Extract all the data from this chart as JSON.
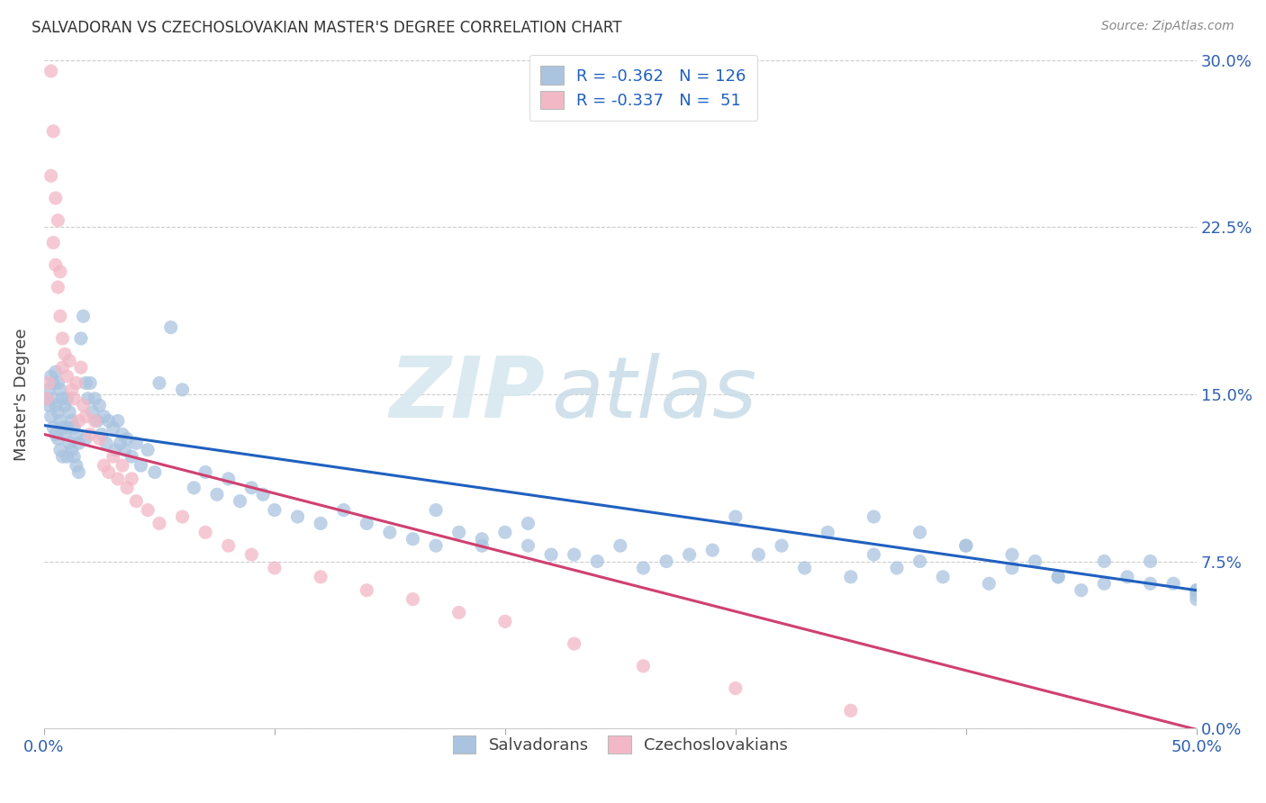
{
  "title": "SALVADORAN VS CZECHOSLOVAKIAN MASTER'S DEGREE CORRELATION CHART",
  "source": "Source: ZipAtlas.com",
  "ylabel": "Master's Degree",
  "ytick_labels": [
    "0.0%",
    "7.5%",
    "15.0%",
    "22.5%",
    "30.0%"
  ],
  "ytick_values": [
    0.0,
    0.075,
    0.15,
    0.225,
    0.3
  ],
  "xlim": [
    0.0,
    0.5
  ],
  "ylim": [
    0.0,
    0.3
  ],
  "blue_color": "#aac4e0",
  "pink_color": "#f2b8c6",
  "line_blue": "#2060c0",
  "line_pink": "#d04070",
  "watermark_zip": "ZIP",
  "watermark_atlas": "atlas",
  "salvadorans_label": "Salvadorans",
  "czechoslovakians_label": "Czechoslovakians",
  "blue_intercept": 0.136,
  "blue_slope": -0.148,
  "pink_intercept": 0.132,
  "pink_slope": -0.265,
  "blue_points_x": [
    0.001,
    0.002,
    0.002,
    0.003,
    0.003,
    0.004,
    0.004,
    0.004,
    0.005,
    0.005,
    0.005,
    0.006,
    0.006,
    0.006,
    0.007,
    0.007,
    0.007,
    0.008,
    0.008,
    0.008,
    0.009,
    0.009,
    0.01,
    0.01,
    0.01,
    0.011,
    0.011,
    0.012,
    0.012,
    0.013,
    0.013,
    0.014,
    0.014,
    0.015,
    0.015,
    0.016,
    0.017,
    0.018,
    0.018,
    0.019,
    0.02,
    0.021,
    0.022,
    0.023,
    0.024,
    0.025,
    0.026,
    0.027,
    0.028,
    0.03,
    0.031,
    0.032,
    0.033,
    0.034,
    0.035,
    0.036,
    0.038,
    0.04,
    0.042,
    0.045,
    0.048,
    0.05,
    0.055,
    0.06,
    0.065,
    0.07,
    0.075,
    0.08,
    0.085,
    0.09,
    0.095,
    0.1,
    0.11,
    0.12,
    0.13,
    0.14,
    0.15,
    0.16,
    0.17,
    0.18,
    0.19,
    0.2,
    0.21,
    0.22,
    0.24,
    0.26,
    0.28,
    0.3,
    0.32,
    0.34,
    0.36,
    0.38,
    0.4,
    0.42,
    0.44,
    0.46,
    0.48,
    0.5,
    0.17,
    0.19,
    0.21,
    0.23,
    0.25,
    0.27,
    0.29,
    0.31,
    0.33,
    0.35,
    0.37,
    0.39,
    0.41,
    0.43,
    0.45,
    0.47,
    0.49,
    0.36,
    0.38,
    0.4,
    0.42,
    0.44,
    0.46,
    0.48,
    0.5,
    0.5,
    0.5
  ],
  "blue_points_y": [
    0.148,
    0.152,
    0.145,
    0.158,
    0.14,
    0.155,
    0.148,
    0.135,
    0.16,
    0.145,
    0.132,
    0.155,
    0.142,
    0.13,
    0.152,
    0.138,
    0.125,
    0.148,
    0.135,
    0.122,
    0.145,
    0.132,
    0.148,
    0.135,
    0.122,
    0.142,
    0.128,
    0.138,
    0.125,
    0.135,
    0.122,
    0.132,
    0.118,
    0.128,
    0.115,
    0.175,
    0.185,
    0.155,
    0.13,
    0.148,
    0.155,
    0.142,
    0.148,
    0.138,
    0.145,
    0.132,
    0.14,
    0.128,
    0.138,
    0.135,
    0.125,
    0.138,
    0.128,
    0.132,
    0.125,
    0.13,
    0.122,
    0.128,
    0.118,
    0.125,
    0.115,
    0.155,
    0.18,
    0.152,
    0.108,
    0.115,
    0.105,
    0.112,
    0.102,
    0.108,
    0.105,
    0.098,
    0.095,
    0.092,
    0.098,
    0.092,
    0.088,
    0.085,
    0.082,
    0.088,
    0.082,
    0.088,
    0.082,
    0.078,
    0.075,
    0.072,
    0.078,
    0.095,
    0.082,
    0.088,
    0.078,
    0.075,
    0.082,
    0.072,
    0.068,
    0.065,
    0.075,
    0.062,
    0.098,
    0.085,
    0.092,
    0.078,
    0.082,
    0.075,
    0.08,
    0.078,
    0.072,
    0.068,
    0.072,
    0.068,
    0.065,
    0.075,
    0.062,
    0.068,
    0.065,
    0.095,
    0.088,
    0.082,
    0.078,
    0.068,
    0.075,
    0.065,
    0.062,
    0.06,
    0.058
  ],
  "pink_points_x": [
    0.001,
    0.002,
    0.003,
    0.003,
    0.004,
    0.004,
    0.005,
    0.005,
    0.006,
    0.006,
    0.007,
    0.007,
    0.008,
    0.008,
    0.009,
    0.01,
    0.011,
    0.012,
    0.013,
    0.014,
    0.015,
    0.016,
    0.017,
    0.018,
    0.02,
    0.022,
    0.024,
    0.026,
    0.028,
    0.03,
    0.032,
    0.034,
    0.036,
    0.038,
    0.04,
    0.045,
    0.05,
    0.06,
    0.07,
    0.08,
    0.09,
    0.1,
    0.12,
    0.14,
    0.16,
    0.18,
    0.2,
    0.23,
    0.26,
    0.3,
    0.35
  ],
  "pink_points_y": [
    0.148,
    0.155,
    0.295,
    0.248,
    0.268,
    0.218,
    0.238,
    0.208,
    0.228,
    0.198,
    0.205,
    0.185,
    0.175,
    0.162,
    0.168,
    0.158,
    0.165,
    0.152,
    0.148,
    0.155,
    0.138,
    0.162,
    0.145,
    0.14,
    0.132,
    0.138,
    0.13,
    0.118,
    0.115,
    0.122,
    0.112,
    0.118,
    0.108,
    0.112,
    0.102,
    0.098,
    0.092,
    0.095,
    0.088,
    0.082,
    0.078,
    0.072,
    0.068,
    0.062,
    0.058,
    0.052,
    0.048,
    0.038,
    0.028,
    0.018,
    0.008
  ]
}
